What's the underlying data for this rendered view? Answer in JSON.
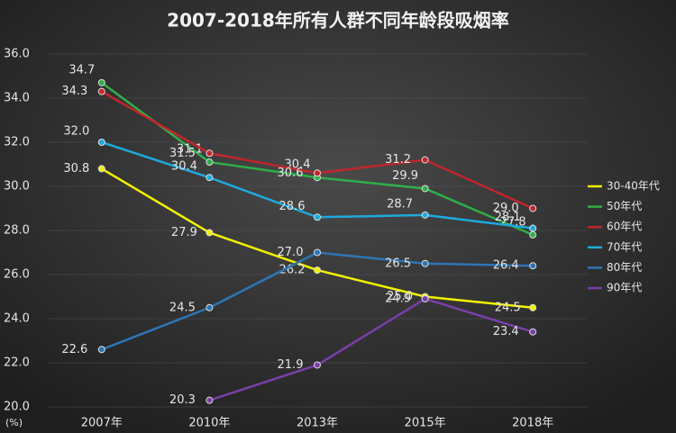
{
  "chart_data": {
    "type": "line",
    "title": "2007-2018年所有人群不同年龄段吸烟率",
    "y_unit": "(%)",
    "categories": [
      "2007年",
      "2010年",
      "2013年",
      "2015年",
      "2018年"
    ],
    "ylim": [
      20,
      36
    ],
    "yticks": [
      {
        "value": 20,
        "label": "20.0"
      },
      {
        "value": 22,
        "label": "22.0"
      },
      {
        "value": 24,
        "label": "24.0"
      },
      {
        "value": 26,
        "label": "26.0"
      },
      {
        "value": 28,
        "label": "28.0"
      },
      {
        "value": 30,
        "label": "30.0"
      },
      {
        "value": 32,
        "label": "32.0"
      },
      {
        "value": 34,
        "label": "34.0"
      },
      {
        "value": 36,
        "label": "36.0"
      }
    ],
    "grid": true,
    "legend": "right",
    "series": [
      {
        "name": "30-40年代",
        "color": "#f2f200",
        "values": [
          30.8,
          27.9,
          26.2,
          25.0,
          24.5
        ],
        "value_labels": [
          "30.8",
          "27.9",
          "26.2",
          "25.0",
          "24.5"
        ]
      },
      {
        "name": "50年代",
        "color": "#2fae4a",
        "values": [
          34.7,
          31.1,
          30.4,
          29.9,
          27.8
        ],
        "value_labels": [
          "34.7",
          "31.1",
          "30.4",
          "29.9",
          "27.8"
        ]
      },
      {
        "name": "60年代",
        "color": "#c0262c",
        "values": [
          34.3,
          31.5,
          30.6,
          31.2,
          29.0
        ],
        "value_labels": [
          "34.3",
          "31.5",
          "30.6",
          "31.2",
          "29.0"
        ]
      },
      {
        "name": "70年代",
        "color": "#1eaadc",
        "values": [
          32.0,
          30.4,
          28.6,
          28.7,
          28.1
        ],
        "value_labels": [
          "32.0",
          "30.4",
          "28.6",
          "28.7",
          "28.1"
        ]
      },
      {
        "name": "80年代",
        "color": "#2e75b6",
        "values": [
          22.6,
          24.5,
          27.0,
          26.5,
          26.4
        ],
        "value_labels": [
          "22.6",
          "24.5",
          "27.0",
          "26.5",
          "26.4"
        ]
      },
      {
        "name": "90年代",
        "color": "#7a3fa8",
        "values": [
          null,
          20.3,
          21.9,
          24.9,
          23.4
        ],
        "value_labels": [
          null,
          "20.3",
          "21.9",
          "24.9",
          "23.4"
        ]
      }
    ]
  }
}
